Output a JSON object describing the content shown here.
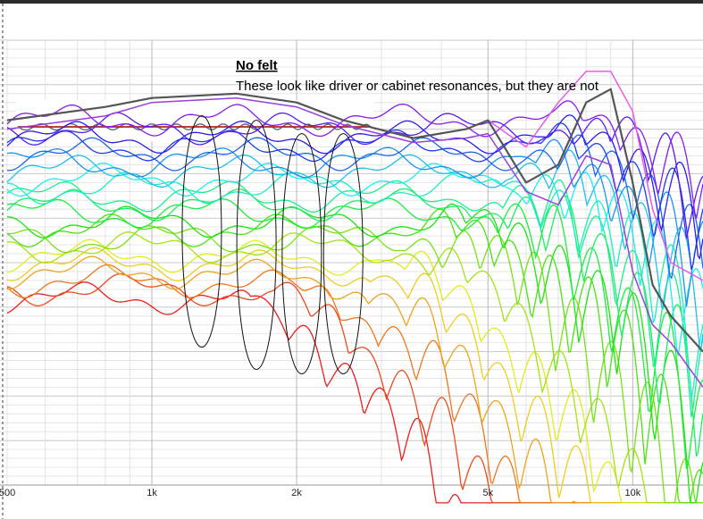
{
  "window": {
    "bar_color": "#2b2b2b"
  },
  "annotation": {
    "title": "No felt",
    "text": "These look like driver or cabinet resonances, but they are not"
  },
  "chart_data": {
    "type": "line",
    "title": "",
    "xlabel": "",
    "ylabel": "",
    "x_scale": "log",
    "xlim": [
      500,
      14000
    ],
    "ylim": [
      0,
      100
    ],
    "grid": true,
    "x_ticks": [
      {
        "value": 500,
        "label": "500"
      },
      {
        "value": 1000,
        "label": "1k"
      },
      {
        "value": 2000,
        "label": "2k"
      },
      {
        "value": 5000,
        "label": "5k"
      },
      {
        "value": 10000,
        "label": "10k"
      }
    ],
    "inset": {
      "description_hidden": true,
      "reference_color": "#b22222",
      "wave_color": "#666666",
      "wave_amplitude": 3.5,
      "wave_cycles": 11
    },
    "curve_count": 22,
    "colors": {
      "top_pink": "#e85ce8",
      "top_gray": "#555555",
      "top_purple": "#9b3fd9"
    },
    "series": [
      {
        "color": "#e85ce8",
        "x": [
          500,
          800,
          1000,
          1500,
          2000,
          2500,
          3500,
          4500,
          5000,
          6000,
          7000,
          8000,
          9000,
          10000,
          11000,
          12000,
          14000
        ],
        "y": [
          82,
          85,
          87,
          88,
          86,
          82,
          78,
          80,
          82,
          76,
          86,
          93,
          93,
          84,
          62,
          50,
          46
        ]
      },
      {
        "color": "#555555",
        "x": [
          500,
          800,
          1000,
          1500,
          2000,
          2500,
          3500,
          4500,
          5000,
          6000,
          7000,
          8000,
          9000,
          10000,
          11000,
          12000,
          14000
        ],
        "y": [
          82,
          85,
          87,
          88,
          86,
          82,
          78,
          80,
          82,
          68,
          72,
          86,
          89,
          68,
          45,
          38,
          30
        ]
      },
      {
        "color": "#9b3fd9",
        "x": [
          500,
          800,
          1000,
          1500,
          2000,
          2500,
          3500,
          4500,
          5000,
          6000,
          7000,
          8000,
          9000,
          10000,
          11000,
          12000,
          14000
        ],
        "y": [
          80,
          83,
          86,
          87,
          85,
          81,
          77,
          78,
          79,
          66,
          63,
          74,
          72,
          48,
          36,
          32,
          22
        ]
      }
    ],
    "ellipses": [
      {
        "freq": 1270,
        "y_center": 57,
        "y_half": 26
      },
      {
        "freq": 1650,
        "y_center": 54,
        "y_half": 28
      },
      {
        "freq": 2050,
        "y_center": 52,
        "y_half": 27
      },
      {
        "freq": 2500,
        "y_center": 52,
        "y_half": 27
      }
    ]
  }
}
